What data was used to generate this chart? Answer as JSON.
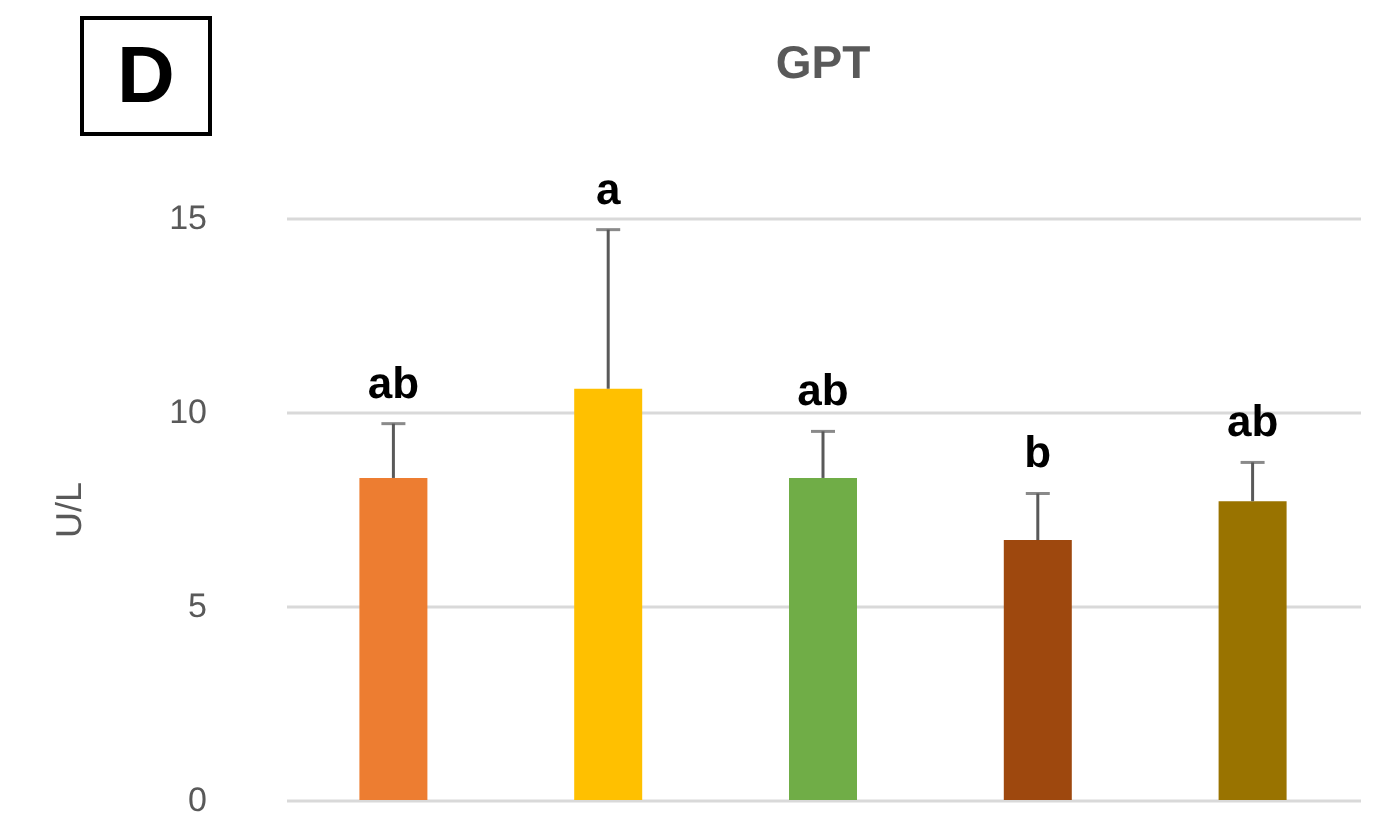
{
  "chart_data": {
    "type": "bar",
    "title": "GPT",
    "ylabel": "U/L",
    "annotations": [
      "D",
      "ab",
      "a",
      "ab",
      "b",
      "ab"
    ],
    "categories": [
      null,
      null,
      null,
      null,
      null
    ],
    "values": [
      8.3,
      10.6,
      8.3,
      6.7,
      7.7
    ],
    "colors": [
      "#ed7d31",
      "#ffc000",
      "#70ad47",
      "#9e480e",
      "#997300"
    ],
    "errors": [
      [
        8.3,
        9.7
      ],
      [
        10.6,
        14.7
      ],
      [
        8.3,
        9.5
      ],
      [
        6.7,
        7.9
      ],
      [
        7.7,
        8.7
      ]
    ],
    "ylim": [
      0,
      15
    ],
    "yticks": [
      0,
      5,
      10,
      15
    ],
    "grid": "y",
    "tick_labels": "y"
  }
}
